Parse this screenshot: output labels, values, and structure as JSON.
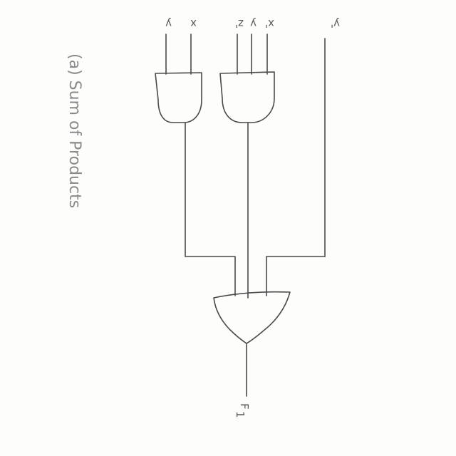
{
  "diagram": {
    "caption": "(a) Sum of Products",
    "inputs": {
      "y": "y",
      "x": "x",
      "z_prime": "z'",
      "y2": "y",
      "x_prime": "x'",
      "y_prime": "y'"
    },
    "output": "F",
    "output_subscript": "1",
    "gates": [
      {
        "type": "AND",
        "inputs": [
          "y",
          "x"
        ]
      },
      {
        "type": "AND",
        "inputs": [
          "z'",
          "y",
          "x'"
        ]
      },
      {
        "type": "OR",
        "inputs": [
          "AND1",
          "AND2",
          "y'"
        ]
      }
    ]
  },
  "colors": {
    "ink": "#4a4a4a",
    "caption_ink": "#8a8a8a",
    "paper": "#fdfdfc"
  }
}
